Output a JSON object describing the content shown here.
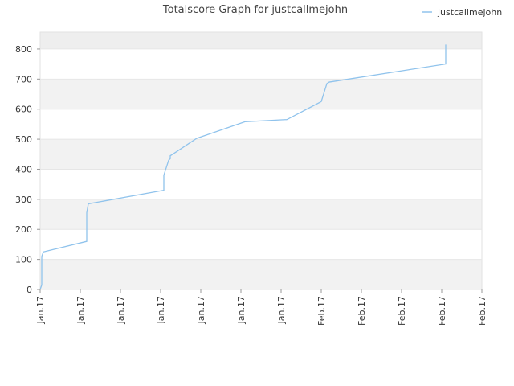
{
  "chart_data": {
    "type": "line",
    "title": "Totalscore Graph for justcallmejohn",
    "x": [
      0,
      0.04,
      0.04,
      0.08,
      1.16,
      1.16,
      1.2,
      3.08,
      3.08,
      3.2,
      3.24,
      3.24,
      3.3,
      3.9,
      5.1,
      6.1,
      6.14,
      7.0,
      7.14,
      7.2,
      10.1,
      10.1
    ],
    "series": [
      {
        "name": "justcallmejohn",
        "color": "#90c3ec",
        "values": [
          0,
          15,
          110,
          125,
          160,
          255,
          285,
          330,
          380,
          430,
          435,
          445,
          450,
          503,
          558,
          565,
          565,
          625,
          685,
          690,
          750,
          815
        ]
      }
    ],
    "xlim": [
      0,
      11
    ],
    "xticks": [
      {
        "value": 0,
        "label": "Jan.17"
      },
      {
        "value": 1,
        "label": "Jan.17"
      },
      {
        "value": 2,
        "label": "Jan.17"
      },
      {
        "value": 3,
        "label": "Jan.17"
      },
      {
        "value": 4,
        "label": "Jan.17"
      },
      {
        "value": 5,
        "label": "Jan.17"
      },
      {
        "value": 6,
        "label": "Jan.17"
      },
      {
        "value": 7,
        "label": "Feb.17"
      },
      {
        "value": 8,
        "label": "Feb.17"
      },
      {
        "value": 9,
        "label": "Feb.17"
      },
      {
        "value": 10,
        "label": "Feb.17"
      },
      {
        "value": 11,
        "label": "Feb.17"
      }
    ],
    "ylim": [
      0,
      856
    ],
    "yticks": [
      0,
      100,
      200,
      300,
      400,
      500,
      600,
      700,
      800
    ],
    "grid": true,
    "legend": "top-right"
  }
}
